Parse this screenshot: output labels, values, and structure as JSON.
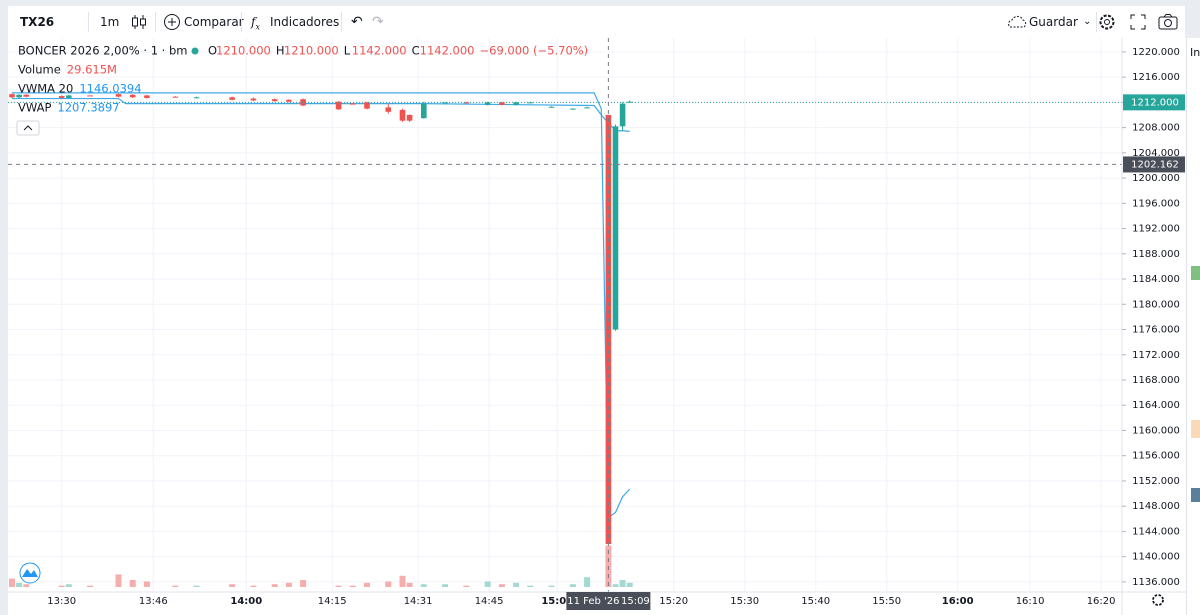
{
  "toolbar": {
    "symbol": "TX26",
    "interval": "1m",
    "compare": "Comparar",
    "indicators": "Indicadores",
    "save": "Guardar"
  },
  "side_panel_label": "In",
  "chart_data": {
    "type": "candlestick",
    "title": "BONCER 2026 2,00% · 1 · bm",
    "ohlc_legend": [
      {
        "key": "O",
        "value": "1210.000"
      },
      {
        "key": "H",
        "value": "1210.000"
      },
      {
        "key": "L",
        "value": "1142.000"
      },
      {
        "key": "C",
        "value": "1142.000"
      }
    ],
    "change": "−69.000 (−5.70%)",
    "volume_legend": {
      "name": "Volume",
      "value": "29.615M"
    },
    "x": [
      0,
      1,
      2,
      7,
      8,
      11,
      15,
      17,
      19,
      23,
      26,
      31,
      34,
      37,
      39,
      41,
      46,
      48,
      50,
      53,
      55,
      56,
      58,
      61,
      64,
      67,
      69,
      71,
      73,
      76,
      79,
      81,
      84,
      85,
      86,
      87
    ],
    "open": [
      1213.3,
      1212.8,
      1213.2,
      1213.0,
      1212.7,
      1213.1,
      1213.3,
      1213.2,
      1213.1,
      1212.9,
      1212.8,
      1212.8,
      1212.6,
      1212.5,
      1212.4,
      1212.5,
      1212.1,
      1211.8,
      1212.0,
      1211.2,
      1210.8,
      1210.0,
      1209.5,
      1211.9,
      1212.0,
      1211.6,
      1212.0,
      1211.6,
      1211.9,
      1211.3,
      1211.0,
      1211.2,
      1210,
      1176,
      1208.2,
      1212.0
    ],
    "high": [
      1213.4,
      1213.3,
      1213.3,
      1213.1,
      1213.2,
      1213.1,
      1213.4,
      1213.3,
      1213.2,
      1213.0,
      1212.9,
      1212.9,
      1212.8,
      1212.6,
      1212.5,
      1212.6,
      1212.2,
      1211.9,
      1212.1,
      1211.8,
      1211.0,
      1210.1,
      1212.1,
      1212.0,
      1212.1,
      1212.1,
      1212.1,
      1212.1,
      1212.0,
      1211.4,
      1211.1,
      1211.3,
      1210,
      1208.5,
      1212.0,
      1212.3
    ],
    "low": [
      1212.7,
      1212.7,
      1212.8,
      1212.6,
      1212.7,
      1213.0,
      1212.8,
      1212.7,
      1212.6,
      1212.8,
      1212.7,
      1212.3,
      1212.2,
      1212.1,
      1212.0,
      1211.4,
      1210.8,
      1211.7,
      1210.9,
      1210.2,
      1208.9,
      1208.9,
      1209.4,
      1211.9,
      1211.9,
      1211.5,
      1211.5,
      1211.5,
      1211.9,
      1211.2,
      1211.0,
      1211.1,
      1142,
      1175.8,
      1207.5,
      1211.9
    ],
    "close": [
      1212.8,
      1213.2,
      1212.9,
      1212.7,
      1213.1,
      1213.0,
      1212.9,
      1212.8,
      1212.7,
      1212.8,
      1212.8,
      1212.4,
      1212.3,
      1212.2,
      1212.1,
      1211.5,
      1210.9,
      1211.7,
      1211.0,
      1210.5,
      1209.1,
      1209.1,
      1211.8,
      1212.0,
      1211.9,
      1212.0,
      1211.6,
      1212.0,
      1212.0,
      1211.3,
      1211.0,
      1211.2,
      1142,
      1208.2,
      1211.8,
      1212.1
    ],
    "volume": [
      6,
      3,
      2,
      1,
      2,
      1,
      9,
      5,
      4,
      1,
      1,
      2,
      1,
      2,
      3,
      5,
      1,
      1,
      3,
      4,
      8,
      3,
      2,
      2,
      1,
      4,
      2,
      3,
      1,
      1,
      2,
      7,
      29.615,
      2,
      5,
      3
    ],
    "up_color": "#26a69a",
    "down_color": "#ef5350",
    "volume_up_color": "#a3d9d2",
    "volume_down_color": "#f6aeac",
    "volume_ylim": [
      0,
      100
    ],
    "lines": [
      {
        "name": "VWMA 20",
        "value_label": "1146.0394",
        "color": "#3fa9e8",
        "x": [
          0,
          82,
          83,
          84,
          85,
          86,
          87
        ],
        "values": [
          1213.5,
          1213.5,
          1211.0,
          1146.2,
          1147.0,
          1149.5,
          1150.7
        ]
      },
      {
        "name": "VWAP",
        "value_label": "1207.3897",
        "color": "#3fa9e8",
        "x": [
          0,
          15,
          16,
          58,
          82,
          83,
          85,
          86,
          87
        ],
        "values": [
          1212.6,
          1212.6,
          1211.8,
          1211.8,
          1211.5,
          1210.0,
          1207.5,
          1207.5,
          1207.4
        ]
      }
    ],
    "xlim": [
      0,
      156.3
    ],
    "xticks": [
      {
        "value": 7,
        "label": "13:30"
      },
      {
        "value": 19.9,
        "label": "13:46"
      },
      {
        "value": 33,
        "label": "14:00"
      },
      {
        "value": 45.1,
        "label": "14:15"
      },
      {
        "value": 57.2,
        "label": "14:31"
      },
      {
        "value": 67.2,
        "label": "14:45"
      },
      {
        "value": 76.8,
        "label": "15:00"
      },
      {
        "value": 93.2,
        "label": "15:20"
      },
      {
        "value": 103.2,
        "label": "15:30"
      },
      {
        "value": 113.2,
        "label": "15:40"
      },
      {
        "value": 123.2,
        "label": "15:50"
      },
      {
        "value": 133.2,
        "label": "16:00"
      },
      {
        "value": 143.4,
        "label": "16:10"
      },
      {
        "value": 153.4,
        "label": "16:20"
      }
    ],
    "ylim": [
      1134.4,
      1222.2
    ],
    "yticks": [
      {
        "value": 1136,
        "label": "1136.000"
      },
      {
        "value": 1140,
        "label": "1140.000"
      },
      {
        "value": 1144,
        "label": "1144.000"
      },
      {
        "value": 1148,
        "label": "1148.000"
      },
      {
        "value": 1152,
        "label": "1152.000"
      },
      {
        "value": 1156,
        "label": "1156.000"
      },
      {
        "value": 1160,
        "label": "1160.000"
      },
      {
        "value": 1164,
        "label": "1164.000"
      },
      {
        "value": 1168,
        "label": "1168.000"
      },
      {
        "value": 1172,
        "label": "1172.000"
      },
      {
        "value": 1176,
        "label": "1176.000"
      },
      {
        "value": 1180,
        "label": "1180.000"
      },
      {
        "value": 1184,
        "label": "1184.000"
      },
      {
        "value": 1188,
        "label": "1188.000"
      },
      {
        "value": 1192,
        "label": "1192.000"
      },
      {
        "value": 1196,
        "label": "1196.000"
      },
      {
        "value": 1200,
        "label": "1200.000"
      },
      {
        "value": 1204,
        "label": "1204.000"
      },
      {
        "value": 1208,
        "label": "1208.000"
      },
      {
        "value": 1212,
        "label": "1212.000"
      },
      {
        "value": 1216,
        "label": "1216.000"
      },
      {
        "value": 1220,
        "label": "1220.000"
      }
    ],
    "grid": true,
    "last_price": {
      "value": 1212,
      "label": "1212.000"
    },
    "crosshair": {
      "x": 84,
      "price": {
        "value": 1202.162,
        "label": "1202.162"
      },
      "date": "11 Feb '26",
      "time": "15:09"
    }
  }
}
